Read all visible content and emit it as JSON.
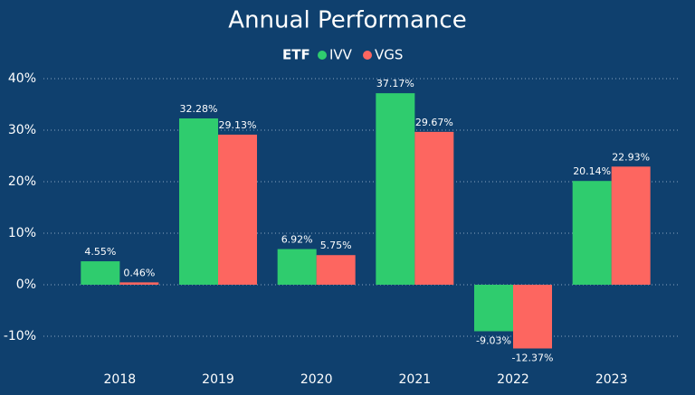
{
  "chart_data": {
    "type": "bar",
    "title": "Annual Performance",
    "legend_title": "ETF",
    "categories": [
      "2018",
      "2019",
      "2020",
      "2021",
      "2022",
      "2023"
    ],
    "series": [
      {
        "name": "IVV",
        "color": "#2fcc6e",
        "values": [
          4.55,
          32.28,
          6.92,
          37.17,
          -9.03,
          20.14
        ],
        "value_labels": [
          "4.55%",
          "32.28%",
          "6.92%",
          "37.17%",
          "-9.03%",
          "20.14%"
        ]
      },
      {
        "name": "VGS",
        "color": "#fd6660",
        "values": [
          0.46,
          29.13,
          5.75,
          29.67,
          -12.37,
          22.93
        ],
        "value_labels": [
          "0.46%",
          "29.13%",
          "5.75%",
          "29.67%",
          "-12.37%",
          "22.93%"
        ]
      }
    ],
    "ylim": [
      -14,
      40
    ],
    "yticks": [
      {
        "value": -10,
        "label": "-10%"
      },
      {
        "value": 0,
        "label": "0%"
      },
      {
        "value": 10,
        "label": "10%"
      },
      {
        "value": 20,
        "label": "20%"
      },
      {
        "value": 30,
        "label": "30%"
      },
      {
        "value": 40,
        "label": "40%"
      }
    ],
    "grid": true
  }
}
